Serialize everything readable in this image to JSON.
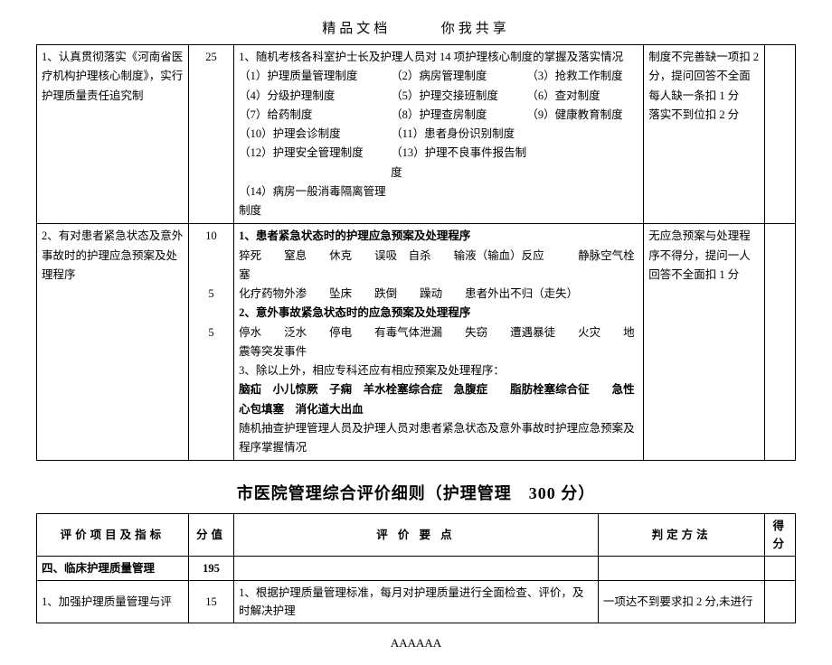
{
  "header": {
    "left": "精品文档",
    "right": "你我共享"
  },
  "row1": {
    "item": "1、认真贯彻落实《河南省医疗机构护理核心制度》，实行护理质量责任追究制",
    "score": "25",
    "intro": "1、随机考核各科室护士长及护理人员对 14 项护理核心制度的掌握及落实情况",
    "regs": [
      "（1）护理质量管理制度",
      "（2）病房管理制度",
      "（3）抢救工作制度",
      "（4）分级护理制度",
      "（5）护理交接班制度",
      "（6）查对制度",
      "（7）给药制度",
      "（8）护理查房制度",
      "（9）健康教育制度",
      "（10）护理会诊制度",
      "（11）患者身份识别制度",
      "",
      "（12）护理安全管理制度",
      "（13）护理不良事件报告制度",
      "",
      "（14）病房一般消毒隔离管理制度",
      "",
      ""
    ],
    "method": "制度不完善缺一项扣 2 分，提问回答不全面每人缺一条扣 1 分\n落实不到位扣 2 分"
  },
  "row2": {
    "item": "2、有对患者紧急状态及意外事故时的护理应急预案及处理程序",
    "scores": [
      "10",
      "",
      "",
      "5",
      "",
      "5"
    ],
    "lines": [
      {
        "bold": true,
        "t": "1、患者紧急状态时的护理应急预案及处理程序"
      },
      {
        "bold": false,
        "t": "猝死　　窒息　　休克　　误吸　自杀　　输液（输血）反应　　　静脉空气栓塞"
      },
      {
        "bold": false,
        "t": "化疗药物外渗　　坠床　　跌倒　　躁动　　患者外出不归（走失）"
      },
      {
        "bold": true,
        "t": "2、意外事故紧急状态时的应急预案及处理程序"
      },
      {
        "bold": false,
        "t": "停水　　泛水　　停电　　有毒气体泄漏　　失窃　　遭遇暴徒　　火灾　　地震等突发事件"
      },
      {
        "bold": false,
        "t": "3、除以上外，相应专科还应有相应预案及处理程序："
      },
      {
        "bold": true,
        "t": "脑疝　小儿惊厥　子痫　羊水栓塞综合症　急腹症　　脂肪栓塞综合征　　急性心包填塞　消化道大出血"
      },
      {
        "bold": false,
        "t": "随机抽查护理管理人员及护理人员对患者紧急状态及意外事故时护理应急预案及程序掌握情况"
      }
    ],
    "method": "无应急预案与处理程序不得分，提问一人回答不全面扣 1 分"
  },
  "heading": "市医院管理综合评价细则（护理管理　300 分）",
  "sub": {
    "cols": [
      "评价项目及指标",
      "分值",
      "评 价 要 点",
      "判定方法",
      "得分"
    ],
    "sectionRow": {
      "item": "四、临床护理质量管理",
      "score": "195"
    },
    "row": {
      "item": "1、加强护理质量管理与评",
      "score": "15",
      "detail": "1、根据护理质量管理标准，每月对护理质量进行全面检查、评价，及时解决护理",
      "method": "一项达不到要求扣 2 分,未进行"
    }
  },
  "footer": "AAAAAA"
}
